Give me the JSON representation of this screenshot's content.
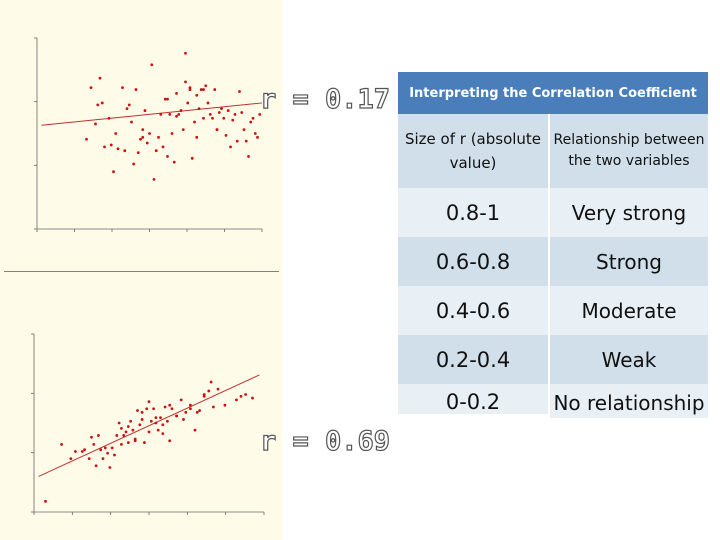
{
  "chart_data": [
    {
      "type": "scatter",
      "title": "",
      "xlabel": "",
      "ylabel": "",
      "annotation": "r = 0.17",
      "xlim": [
        0,
        100
      ],
      "ylim": [
        0,
        100
      ],
      "point_color": "#cc1111",
      "line_color": "#c03030",
      "fit_line": {
        "x": [
          2,
          100
        ],
        "y": [
          54.3,
          66
        ]
      },
      "x": [
        24,
        27,
        32,
        38,
        40,
        44,
        45,
        47,
        49,
        51,
        55,
        57,
        60,
        62,
        64,
        66,
        68,
        70,
        72,
        73,
        74,
        75,
        76,
        78,
        79,
        80,
        81,
        82,
        83,
        84,
        85,
        86,
        87,
        88,
        89,
        90,
        91,
        92,
        93,
        94,
        95,
        96,
        97,
        98,
        99,
        22,
        26,
        30,
        35,
        42,
        48,
        53,
        58,
        63,
        67,
        71,
        77,
        34,
        43,
        52,
        61,
        69,
        36,
        46,
        56,
        65,
        74,
        29,
        39,
        50,
        59,
        68,
        28,
        41,
        54,
        62,
        71,
        80,
        33,
        47,
        58,
        66
      ],
      "y": [
        74,
        65,
        58,
        74,
        63,
        73,
        40,
        52,
        45,
        86,
        60,
        68,
        50,
        71,
        62,
        92,
        73,
        56,
        63,
        73,
        73,
        75,
        66,
        58,
        73,
        52,
        61,
        63,
        58,
        49,
        62,
        43,
        57,
        60,
        46,
        72,
        61,
        52,
        46,
        38,
        56,
        58,
        50,
        48,
        60,
        47,
        55,
        43,
        50,
        56,
        62,
        41,
        38,
        60,
        66,
        48,
        60,
        30,
        34,
        26,
        35,
        37,
        42,
        47,
        43,
        52,
        58,
        66,
        41,
        50,
        60,
        74,
        79,
        65,
        48,
        59,
        70,
        52,
        44,
        48,
        68,
        77
      ]
    },
    {
      "type": "scatter",
      "title": "",
      "xlabel": "",
      "ylabel": "",
      "annotation": "r = 0.69",
      "xlim": [
        0,
        100
      ],
      "ylim": [
        0,
        100
      ],
      "point_color": "#cc1111",
      "line_color": "#c03030",
      "fit_line": {
        "x": [
          2,
          98
        ],
        "y": [
          20,
          77
        ]
      },
      "x": [
        5,
        12,
        16,
        18,
        21,
        22,
        24,
        26,
        28,
        29,
        30,
        31,
        33,
        35,
        36,
        37,
        38,
        39,
        40,
        41,
        42,
        43,
        44,
        45,
        46,
        47,
        48,
        49,
        50,
        51,
        52,
        53,
        54,
        55,
        56,
        57,
        58,
        59,
        60,
        62,
        64,
        66,
        68,
        70,
        72,
        74,
        76,
        78,
        83,
        88,
        90,
        92,
        95,
        25,
        27,
        32,
        34,
        38,
        41,
        44,
        47,
        50,
        53,
        56,
        59,
        62,
        65,
        68,
        71,
        74,
        77,
        80
      ],
      "y": [
        6,
        38,
        30,
        34,
        34,
        35,
        30,
        38,
        43,
        35,
        30,
        36,
        25,
        32,
        43,
        50,
        47,
        43,
        45,
        39,
        51,
        46,
        40,
        57,
        49,
        52,
        39,
        58,
        45,
        51,
        58,
        50,
        46,
        53,
        44,
        59,
        51,
        40,
        58,
        54,
        63,
        56,
        60,
        46,
        57,
        66,
        68,
        59,
        60,
        63,
        65,
        66,
        64,
        42,
        26,
        33,
        36,
        38,
        48,
        41,
        56,
        62,
        53,
        49,
        60,
        54,
        52,
        58,
        56,
        65,
        73,
        69
      ]
    }
  ],
  "table": {
    "title": "Interpreting the Correlation Coefficient",
    "header": {
      "col1": "Size of r (absolute value)",
      "col2": "Relationship between the two variables"
    },
    "rows": [
      {
        "range": "0.8-1",
        "relationship": "Very strong"
      },
      {
        "range": "0.6-0.8",
        "relationship": "Strong"
      },
      {
        "range": "0.4-0.6",
        "relationship": "Moderate"
      },
      {
        "range": "0.2-0.4",
        "relationship": "Weak"
      },
      {
        "range": "0-0.2",
        "relationship": "No relationship"
      }
    ]
  }
}
